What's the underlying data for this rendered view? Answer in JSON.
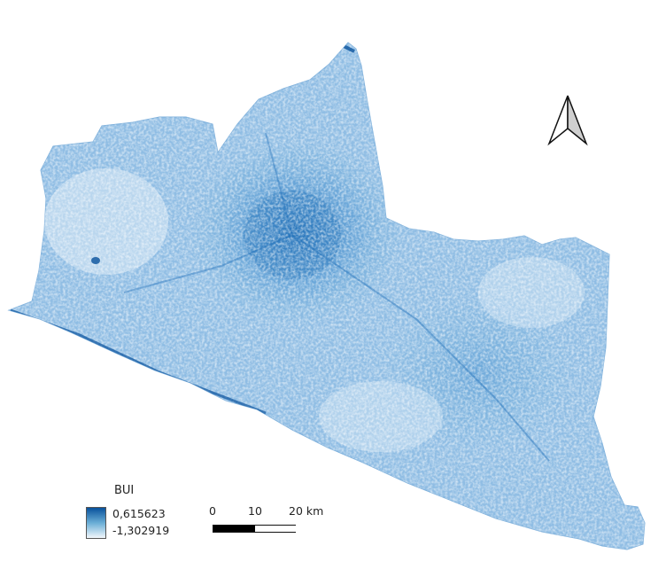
{
  "map": {
    "region_fill": "#8fbde4",
    "dark_color": "#08519c",
    "light_color": "#eef5fb"
  },
  "legend": {
    "title": "BUI",
    "max_label": "0,615623",
    "min_label": "-1,302919"
  },
  "scale_bar": {
    "labels": [
      "0",
      "10",
      "20 km"
    ]
  },
  "north_arrow": {
    "icon": "north-arrow-icon"
  }
}
